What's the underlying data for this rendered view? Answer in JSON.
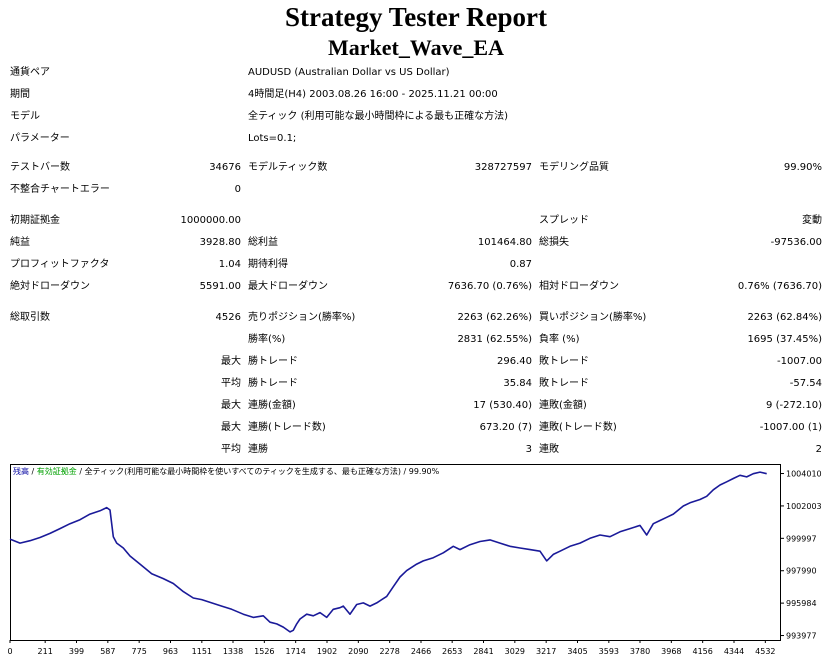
{
  "title": "Strategy Tester Report",
  "subtitle": "Market_Wave_EA",
  "info": [
    {
      "label": "通貨ペア",
      "value": "AUDUSD (Australian Dollar vs US Dollar)"
    },
    {
      "label": "期間",
      "value": "4時間足(H4) 2003.08.26 16:00 - 2025.11.21 00:00"
    },
    {
      "label": "モデル",
      "value": "全ティック (利用可能な最小時間枠による最も正確な方法)"
    },
    {
      "label": "パラメーター",
      "value": "Lots=0.1;"
    }
  ],
  "stats": {
    "test_bars_label": "テストバー数",
    "test_bars": "34676",
    "model_ticks_label": "モデルティック数",
    "model_ticks": "328727597",
    "model_quality_label": "モデリング品質",
    "model_quality": "99.90%",
    "mismatch_label": "不整合チャートエラー",
    "mismatch": "0",
    "initial_deposit_label": "初期証拠金",
    "initial_deposit": "1000000.00",
    "spread_label": "スプレッド",
    "spread": "変動",
    "net_profit_label": "純益",
    "net_profit": "3928.80",
    "gross_profit_label": "総利益",
    "gross_profit": "101464.80",
    "gross_loss_label": "総損失",
    "gross_loss": "-97536.00",
    "profit_factor_label": "プロフィットファクタ",
    "profit_factor": "1.04",
    "expected_payoff_label": "期待利得",
    "expected_payoff": "0.87",
    "abs_dd_label": "絶対ドローダウン",
    "abs_dd": "5591.00",
    "max_dd_label": "最大ドローダウン",
    "max_dd": "7636.70 (0.76%)",
    "rel_dd_label": "相対ドローダウン",
    "rel_dd": "0.76% (7636.70)",
    "total_trades_label": "総取引数",
    "total_trades": "4526",
    "short_label": "売りポジション(勝率%)",
    "short": "2263 (62.26%)",
    "long_label": "買いポジション(勝率%)",
    "long": "2263 (62.84%)",
    "win_pct_label": "勝率(%)",
    "win_pct": "2831 (62.55%)",
    "loss_pct_label": "負率 (%)",
    "loss_pct": "1695 (37.45%)",
    "max_label": "最大",
    "avg_label": "平均",
    "largest_win_label": "勝トレード",
    "largest_win": "296.40",
    "largest_loss_label": "敗トレード",
    "largest_loss": "-1007.00",
    "avg_win_label": "勝トレード",
    "avg_win": "35.84",
    "avg_loss_label": "敗トレード",
    "avg_loss": "-57.54",
    "max_consec_wins_label": "連勝(金額)",
    "max_consec_wins": "17 (530.40)",
    "max_consec_losses_label": "連敗(金額)",
    "max_consec_losses": "9 (-272.10)",
    "max_consec_profit_label": "連勝(トレード数)",
    "max_consec_profit": "673.20 (7)",
    "max_consec_loss_label": "連敗(トレード数)",
    "max_consec_loss": "-1007.00 (1)",
    "avg_consec_wins_label": "連勝",
    "avg_consec_wins": "3",
    "avg_consec_losses_label": "連敗",
    "avg_consec_losses": "2"
  },
  "chart_data": {
    "type": "line",
    "legend": [
      {
        "text": "残高",
        "color": "#0000a0"
      },
      {
        "text": " / ",
        "color": "#000000"
      },
      {
        "text": "有効証拠金",
        "color": "#00a000"
      },
      {
        "text": " / 全ティック(利用可能な最小時間枠を使いすべてのティックを生成する、最も正確な方法) / 99.90%",
        "color": "#000000"
      }
    ],
    "line_color": "#1a1a99",
    "x_ticks": [
      "0",
      "211",
      "399",
      "587",
      "775",
      "963",
      "1151",
      "1338",
      "1526",
      "1714",
      "1902",
      "2090",
      "2278",
      "2466",
      "2653",
      "2841",
      "3029",
      "3217",
      "3405",
      "3593",
      "3780",
      "3968",
      "4156",
      "4344",
      "4532"
    ],
    "x_tick_values": [
      0,
      211,
      399,
      587,
      775,
      963,
      1151,
      1338,
      1526,
      1714,
      1902,
      2090,
      2278,
      2466,
      2653,
      2841,
      3029,
      3217,
      3405,
      3593,
      3780,
      3968,
      4156,
      4344,
      4532
    ],
    "xlim": [
      0,
      4620
    ],
    "y_ticks": [
      "1004010",
      "1002003",
      "999997",
      "997990",
      "995984",
      "993977"
    ],
    "y_tick_values": [
      1004010,
      1002003,
      999997,
      997990,
      995984,
      993977
    ],
    "ylim": [
      993700,
      1004600
    ],
    "x": [
      0,
      60,
      120,
      180,
      240,
      300,
      360,
      420,
      480,
      540,
      580,
      600,
      620,
      640,
      680,
      720,
      780,
      850,
      920,
      980,
      1040,
      1100,
      1150,
      1210,
      1270,
      1330,
      1400,
      1460,
      1520,
      1560,
      1600,
      1640,
      1680,
      1700,
      1720,
      1740,
      1780,
      1820,
      1860,
      1900,
      1940,
      1980,
      2000,
      2040,
      2080,
      2120,
      2160,
      2200,
      2260,
      2300,
      2340,
      2380,
      2440,
      2480,
      2540,
      2600,
      2660,
      2700,
      2760,
      2820,
      2880,
      2940,
      3000,
      3060,
      3120,
      3180,
      3220,
      3260,
      3300,
      3360,
      3420,
      3480,
      3540,
      3600,
      3660,
      3720,
      3780,
      3820,
      3860,
      3900,
      3940,
      3980,
      4040,
      4080,
      4140,
      4180,
      4220,
      4260,
      4300,
      4340,
      4380,
      4420,
      4460,
      4500,
      4540
    ],
    "y": [
      999950,
      999700,
      999850,
      1000050,
      1000300,
      1000600,
      1000900,
      1001150,
      1001500,
      1001700,
      1001900,
      1001750,
      1000100,
      999700,
      999400,
      998900,
      998400,
      997800,
      997500,
      997200,
      996700,
      996300,
      996200,
      996000,
      995800,
      995600,
      995300,
      995100,
      995200,
      994800,
      994700,
      994500,
      994200,
      994300,
      994700,
      995000,
      995300,
      995200,
      995400,
      995100,
      995600,
      995700,
      995800,
      995300,
      995900,
      996000,
      995800,
      996000,
      996400,
      997000,
      997600,
      998000,
      998400,
      998600,
      998800,
      999100,
      999500,
      999300,
      999600,
      999800,
      999900,
      999700,
      999500,
      999400,
      999300,
      999200,
      998600,
      999000,
      999200,
      999500,
      999700,
      1000000,
      1000200,
      1000100,
      1000400,
      1000600,
      1000800,
      1000200,
      1000900,
      1001100,
      1001300,
      1001500,
      1002000,
      1002200,
      1002400,
      1002600,
      1003000,
      1003300,
      1003500,
      1003700,
      1003900,
      1003800,
      1004000,
      1004100,
      1004000
    ]
  }
}
